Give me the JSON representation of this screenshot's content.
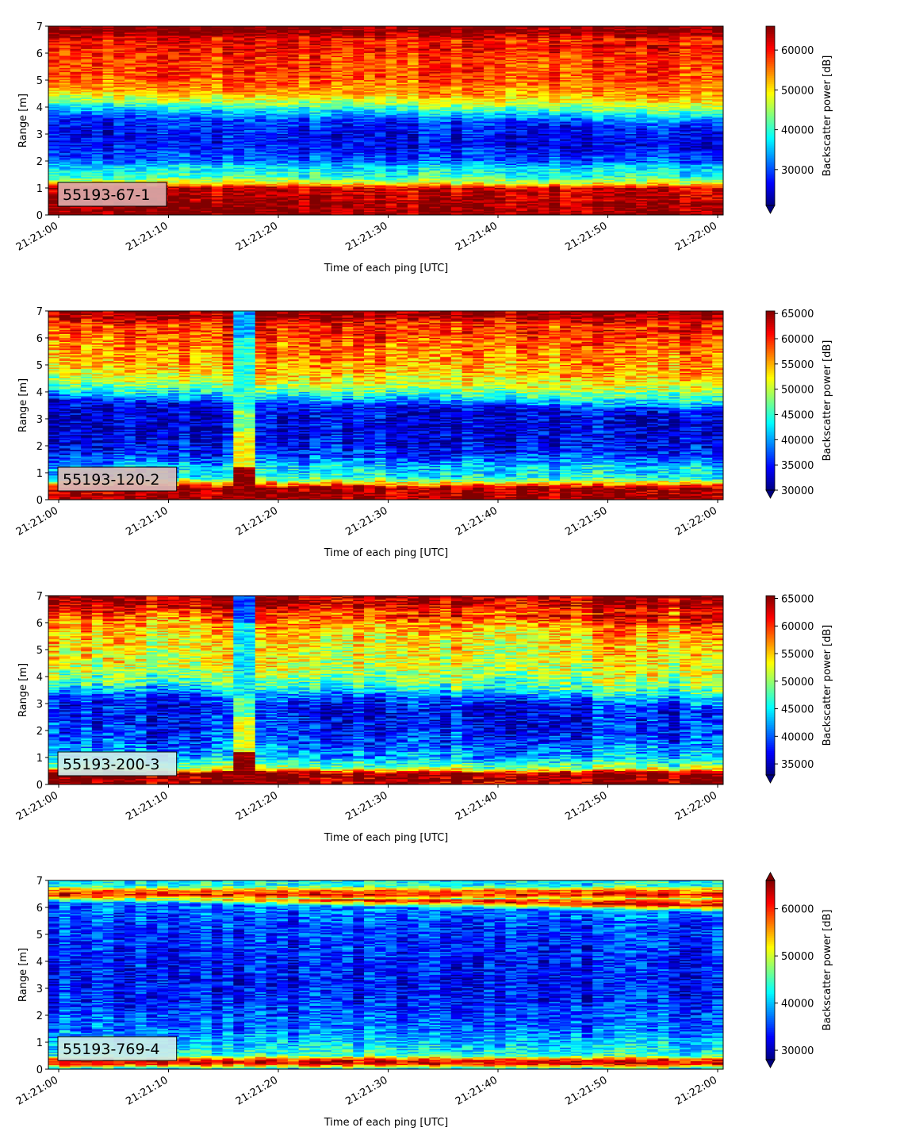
{
  "chart_data": [
    {
      "type": "heatmap",
      "label": "55193-67-1",
      "xlabel": "Time of each ping [UTC]",
      "ylabel": "Range [m]",
      "x_range": [
        "21:21:00",
        "21:22:00"
      ],
      "xticks": [
        "21:21:00",
        "21:21:10",
        "21:21:20",
        "21:21:30",
        "21:21:40",
        "21:21:50",
        "21:22:00"
      ],
      "ylim": [
        0,
        7
      ],
      "yticks": [
        "0",
        "1",
        "2",
        "3",
        "4",
        "5",
        "6",
        "7"
      ],
      "colormap": "jet",
      "colorbar_label": "Backscatter power [dB]",
      "clim": [
        21000,
        66000
      ],
      "colorbar_ticks": [
        "30000",
        "40000",
        "50000",
        "60000"
      ],
      "colorbar_extend": "min",
      "label_box_color": "#d9a9a9",
      "profile_m": [
        [
          0,
          65000
        ],
        [
          0.2,
          65000
        ],
        [
          1.0,
          62000
        ],
        [
          1.15,
          50000
        ],
        [
          1.4,
          40000
        ],
        [
          1.8,
          36000
        ],
        [
          2.0,
          30000
        ],
        [
          2.5,
          27000
        ],
        [
          3.0,
          26000
        ],
        [
          3.6,
          28000
        ],
        [
          4.0,
          36000
        ],
        [
          4.3,
          45000
        ],
        [
          4.7,
          53000
        ],
        [
          5.3,
          57000
        ],
        [
          6.0,
          58000
        ],
        [
          6.5,
          60000
        ],
        [
          6.8,
          66000
        ],
        [
          7.0,
          66000
        ]
      ],
      "time_segments": []
    },
    {
      "type": "heatmap",
      "label": "55193-120-2",
      "xlabel": "Time of each ping [UTC]",
      "ylabel": "Range [m]",
      "x_range": [
        "21:21:00",
        "21:22:00"
      ],
      "xticks": [
        "21:21:00",
        "21:21:10",
        "21:21:20",
        "21:21:30",
        "21:21:40",
        "21:21:50",
        "21:22:00"
      ],
      "ylim": [
        0,
        7
      ],
      "yticks": [
        "0",
        "1",
        "2",
        "3",
        "4",
        "5",
        "6",
        "7"
      ],
      "colormap": "jet",
      "colorbar_label": "Backscatter power [dB]",
      "clim": [
        30000,
        65500
      ],
      "colorbar_ticks": [
        "30000",
        "35000",
        "40000",
        "45000",
        "50000",
        "55000",
        "60000",
        "65000"
      ],
      "colorbar_extend": "min",
      "label_box_color": "#d9b9b9",
      "profile_m": [
        [
          0,
          65000
        ],
        [
          0.4,
          65000
        ],
        [
          0.6,
          55000
        ],
        [
          0.8,
          44000
        ],
        [
          1.2,
          42000
        ],
        [
          1.6,
          37000
        ],
        [
          2.0,
          34000
        ],
        [
          3.0,
          33000
        ],
        [
          3.6,
          34000
        ],
        [
          4.0,
          43000
        ],
        [
          4.4,
          50000
        ],
        [
          5.0,
          55000
        ],
        [
          5.8,
          57000
        ],
        [
          6.5,
          60000
        ],
        [
          6.8,
          65000
        ],
        [
          7.0,
          65000
        ]
      ],
      "time_segments": [
        {
          "from_s": 16.4,
          "to_s": 18.2,
          "kind": "column"
        }
      ]
    },
    {
      "type": "heatmap",
      "label": "55193-200-3",
      "xlabel": "Time of each ping [UTC]",
      "ylabel": "Range [m]",
      "x_range": [
        "21:21:00",
        "21:22:00"
      ],
      "xticks": [
        "21:21:00",
        "21:21:10",
        "21:21:20",
        "21:21:30",
        "21:21:40",
        "21:21:50",
        "21:22:00"
      ],
      "ylim": [
        0,
        7
      ],
      "yticks": [
        "0",
        "1",
        "2",
        "3",
        "4",
        "5",
        "6",
        "7"
      ],
      "colormap": "jet",
      "colorbar_label": "Backscatter power [dB]",
      "clim": [
        33000,
        65500
      ],
      "colorbar_ticks": [
        "35000",
        "40000",
        "45000",
        "50000",
        "55000",
        "60000",
        "65000"
      ],
      "colorbar_extend": "min",
      "label_box_color": "#cdeaea",
      "profile_m": [
        [
          0,
          65000
        ],
        [
          0.4,
          65000
        ],
        [
          0.6,
          50000
        ],
        [
          1.0,
          43000
        ],
        [
          1.5,
          40000
        ],
        [
          2.0,
          38000
        ],
        [
          3.0,
          37000
        ],
        [
          3.4,
          40000
        ],
        [
          3.8,
          47000
        ],
        [
          4.5,
          52000
        ],
        [
          5.5,
          54000
        ],
        [
          6.2,
          57000
        ],
        [
          6.6,
          63000
        ],
        [
          7.0,
          65000
        ]
      ],
      "time_segments": [
        {
          "from_s": 15.7,
          "to_s": 17.4,
          "kind": "column"
        }
      ]
    },
    {
      "type": "heatmap",
      "label": "55193-769-4",
      "xlabel": "Time of each ping [UTC]",
      "ylabel": "Range [m]",
      "x_range": [
        "21:21:00",
        "21:22:00"
      ],
      "xticks": [
        "21:21:00",
        "21:21:10",
        "21:21:20",
        "21:21:30",
        "21:21:40",
        "21:21:50",
        "21:22:00"
      ],
      "ylim": [
        0,
        7
      ],
      "yticks": [
        "0",
        "1",
        "2",
        "3",
        "4",
        "5",
        "6",
        "7"
      ],
      "colormap": "jet",
      "colorbar_label": "Backscatter power [dB]",
      "clim": [
        28000,
        66000
      ],
      "colorbar_ticks": [
        "30000",
        "40000",
        "50000",
        "60000"
      ],
      "colorbar_extend": "both",
      "label_box_color": "#cdeaea",
      "profile_m": [
        [
          0,
          40000
        ],
        [
          0.2,
          63000
        ],
        [
          0.35,
          60000
        ],
        [
          0.5,
          44000
        ],
        [
          1.0,
          40000
        ],
        [
          1.5,
          37000
        ],
        [
          2.5,
          34000
        ],
        [
          3.5,
          33000
        ],
        [
          4.5,
          34000
        ],
        [
          5.5,
          35000
        ],
        [
          6.2,
          37000
        ],
        [
          6.45,
          62000
        ],
        [
          6.65,
          55000
        ],
        [
          6.8,
          43000
        ],
        [
          7.0,
          42000
        ]
      ],
      "time_segments": []
    }
  ]
}
